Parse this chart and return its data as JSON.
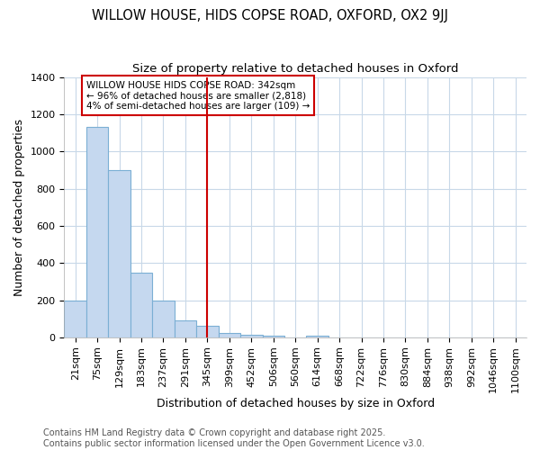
{
  "title": "WILLOW HOUSE, HIDS COPSE ROAD, OXFORD, OX2 9JJ",
  "subtitle": "Size of property relative to detached houses in Oxford",
  "xlabel": "Distribution of detached houses by size in Oxford",
  "ylabel": "Number of detached properties",
  "footer_line1": "Contains HM Land Registry data © Crown copyright and database right 2025.",
  "footer_line2": "Contains public sector information licensed under the Open Government Licence v3.0.",
  "categories": [
    "21sqm",
    "75sqm",
    "129sqm",
    "183sqm",
    "237sqm",
    "291sqm",
    "345sqm",
    "399sqm",
    "452sqm",
    "506sqm",
    "560sqm",
    "614sqm",
    "668sqm",
    "722sqm",
    "776sqm",
    "830sqm",
    "884sqm",
    "938sqm",
    "992sqm",
    "1046sqm",
    "1100sqm"
  ],
  "values": [
    200,
    1130,
    900,
    350,
    200,
    90,
    60,
    25,
    15,
    10,
    0,
    10,
    0,
    0,
    0,
    0,
    0,
    0,
    0,
    0,
    0
  ],
  "bar_color": "#c5d8ef",
  "bar_edge_color": "#7bafd4",
  "red_line_index": 6,
  "annotation_text": "WILLOW HOUSE HIDS COPSE ROAD: 342sqm\n← 96% of detached houses are smaller (2,818)\n4% of semi-detached houses are larger (109) →",
  "annotation_box_facecolor": "#ffffff",
  "annotation_border_color": "#cc0000",
  "ylim": [
    0,
    1400
  ],
  "fig_bg_color": "#ffffff",
  "plot_bg_color": "#ffffff",
  "grid_color": "#c8d8e8",
  "title_fontsize": 10.5,
  "subtitle_fontsize": 9.5,
  "axis_label_fontsize": 9,
  "tick_fontsize": 8,
  "annotation_fontsize": 7.5,
  "footer_fontsize": 7
}
